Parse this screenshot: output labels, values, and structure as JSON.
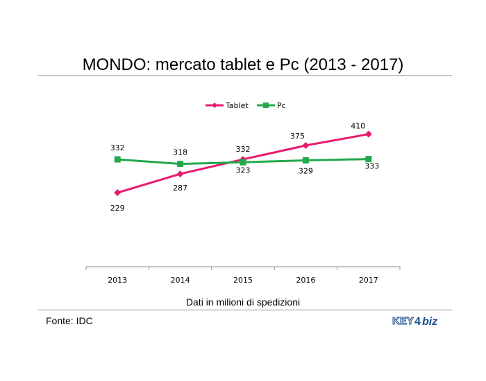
{
  "title": "MONDO: mercato tablet e Pc (2013 - 2017)",
  "footer": {
    "source": "Fonte: IDC",
    "logo_text": "KEY4biz"
  },
  "chart_data": {
    "type": "line",
    "categories": [
      "2013",
      "2014",
      "2015",
      "2016",
      "2017"
    ],
    "series": [
      {
        "name": "Tablet",
        "values": [
          229,
          287,
          332,
          375,
          410
        ],
        "color": "#e8196e",
        "marker": "diamond"
      },
      {
        "name": "Pc",
        "values": [
          332,
          318,
          323,
          329,
          333
        ],
        "color": "#21a94b",
        "marker": "square"
      }
    ],
    "xlabel": "Dati in milioni di spedizioni",
    "ylim": [
      0,
      600
    ],
    "legend": "top-center",
    "grid": false
  }
}
